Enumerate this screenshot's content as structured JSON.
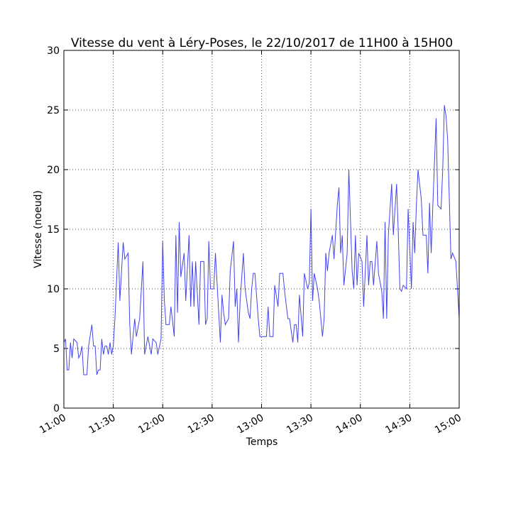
{
  "chart_data": {
    "type": "line",
    "title": "Vitesse du vent à Léry-Poses, le 22/10/2017 de 11H00 à 15H00",
    "xlabel": "Temps",
    "ylabel": "Vitesse (noeud)",
    "x": [
      "11:00",
      "11:01",
      "11:02",
      "11:03",
      "11:04",
      "11:05",
      "11:06",
      "11:08",
      "11:09",
      "11:10",
      "11:11",
      "11:12",
      "11:14",
      "11:15",
      "11:17",
      "11:18",
      "11:19",
      "11:20",
      "11:21",
      "11:22",
      "11:23",
      "11:24",
      "11:25",
      "11:26",
      "11:27",
      "11:28",
      "11:29",
      "11:30",
      "11:31",
      "11:33",
      "11:34",
      "11:36",
      "11:37",
      "11:39",
      "11:40",
      "11:41",
      "11:43",
      "11:44",
      "11:46",
      "11:48",
      "11:49",
      "11:51",
      "11:53",
      "11:54",
      "11:56",
      "11:57",
      "11:59",
      "12:00",
      "12:01",
      "12:02",
      "12:04",
      "12:05",
      "12:07",
      "12:08",
      "12:09",
      "12:10",
      "12:11",
      "12:13",
      "12:14",
      "12:16",
      "12:17",
      "12:18",
      "12:19",
      "12:20",
      "12:22",
      "12:23",
      "12:25",
      "12:26",
      "12:27",
      "12:28",
      "12:29",
      "12:31",
      "12:32",
      "12:34",
      "12:35",
      "12:36",
      "12:37",
      "12:38",
      "12:40",
      "12:41",
      "12:43",
      "12:44",
      "12:45",
      "12:46",
      "12:47",
      "12:49",
      "12:50",
      "12:52",
      "12:53",
      "12:54",
      "12:55",
      "12:56",
      "12:58",
      "12:59",
      "13:01",
      "13:02",
      "13:03",
      "13:04",
      "13:05",
      "13:07",
      "13:08",
      "13:10",
      "13:11",
      "13:12",
      "13:13",
      "13:14",
      "13:16",
      "13:17",
      "13:19",
      "13:20",
      "13:21",
      "13:22",
      "13:23",
      "13:25",
      "13:26",
      "13:28",
      "13:29",
      "13:30",
      "13:31",
      "13:32",
      "13:34",
      "13:35",
      "13:37",
      "13:38",
      "13:39",
      "13:40",
      "13:41",
      "13:43",
      "13:44",
      "13:46",
      "13:47",
      "13:48",
      "13:49",
      "13:50",
      "13:52",
      "13:53",
      "13:55",
      "13:56",
      "13:57",
      "13:58",
      "13:59",
      "14:01",
      "14:02",
      "14:04",
      "14:05",
      "14:06",
      "14:07",
      "14:08",
      "14:10",
      "14:11",
      "14:13",
      "14:14",
      "14:15",
      "14:16",
      "14:17",
      "14:19",
      "14:20",
      "14:22",
      "14:23",
      "14:24",
      "14:25",
      "14:26",
      "14:28",
      "14:29",
      "14:31",
      "14:32",
      "14:33",
      "14:34",
      "14:35",
      "14:37",
      "14:38",
      "14:40",
      "14:41",
      "14:42",
      "14:43",
      "14:44",
      "14:46",
      "14:47",
      "14:49",
      "14:50",
      "14:51",
      "14:52",
      "14:53",
      "14:55",
      "14:56",
      "14:58",
      "15:00"
    ],
    "values": [
      5.5,
      5.8,
      3.2,
      3.2,
      5.5,
      4.2,
      5.8,
      5.5,
      4.2,
      4.5,
      5.2,
      2.8,
      2.8,
      5.2,
      7.0,
      5.2,
      5.2,
      2.8,
      3.2,
      3.2,
      5.8,
      4.5,
      5.2,
      5.2,
      4.5,
      5.5,
      4.5,
      5.2,
      7.5,
      13.9,
      9.0,
      13.9,
      12.5,
      13,
      7,
      4.5,
      7.5,
      6,
      7.5,
      12.3,
      4.5,
      6,
      4.5,
      5.8,
      5.5,
      4.5,
      5.8,
      14,
      9,
      7,
      7,
      8.5,
      6,
      14.5,
      8,
      15.6,
      11,
      13,
      9,
      14.5,
      8.5,
      12.3,
      8.5,
      12.3,
      7,
      12.3,
      12.3,
      7,
      7.5,
      14,
      10,
      10,
      13,
      8,
      5.5,
      9.5,
      8,
      7,
      7.5,
      11.5,
      14,
      8.5,
      10,
      5.5,
      9,
      13,
      10,
      8,
      7.5,
      10,
      11.3,
      11.3,
      7.5,
      6,
      6,
      6,
      6,
      8.5,
      6,
      6,
      10.3,
      8.5,
      11.3,
      11.3,
      11.3,
      9.8,
      7.5,
      7.5,
      5.5,
      7,
      7,
      5.5,
      9.5,
      6,
      11.3,
      10,
      10.5,
      16.7,
      9,
      11.3,
      10,
      9,
      6,
      7.5,
      13,
      11.5,
      13,
      14.5,
      12.5,
      17,
      18.5,
      13,
      14.5,
      10.3,
      13,
      20,
      11.5,
      10,
      14.5,
      10.3,
      13,
      12.3,
      8.5,
      14.5,
      10.3,
      12.3,
      12.3,
      10.3,
      14,
      11.3,
      9.8,
      7.5,
      15.6,
      7.5,
      14.5,
      18.8,
      14.5,
      18.8,
      14.8,
      10,
      9.8,
      10.3,
      10,
      16.7,
      10,
      15.6,
      13,
      17,
      20,
      17.5,
      14.5,
      14.5,
      11.3,
      17.2,
      13,
      17,
      24.3,
      17,
      16.7,
      20,
      25.4,
      24.5,
      22.5,
      12.5,
      13,
      12.3,
      7.5
    ],
    "color": "#4444ee",
    "xlim": [
      "11:00",
      "15:00"
    ],
    "xticks": [
      "11:00",
      "11:30",
      "12:00",
      "12:30",
      "13:00",
      "13:30",
      "14:00",
      "14:30",
      "15:00"
    ],
    "ylim": [
      0,
      30
    ],
    "yticks": [
      0,
      5,
      10,
      15,
      20,
      25,
      30
    ],
    "grid": true
  }
}
